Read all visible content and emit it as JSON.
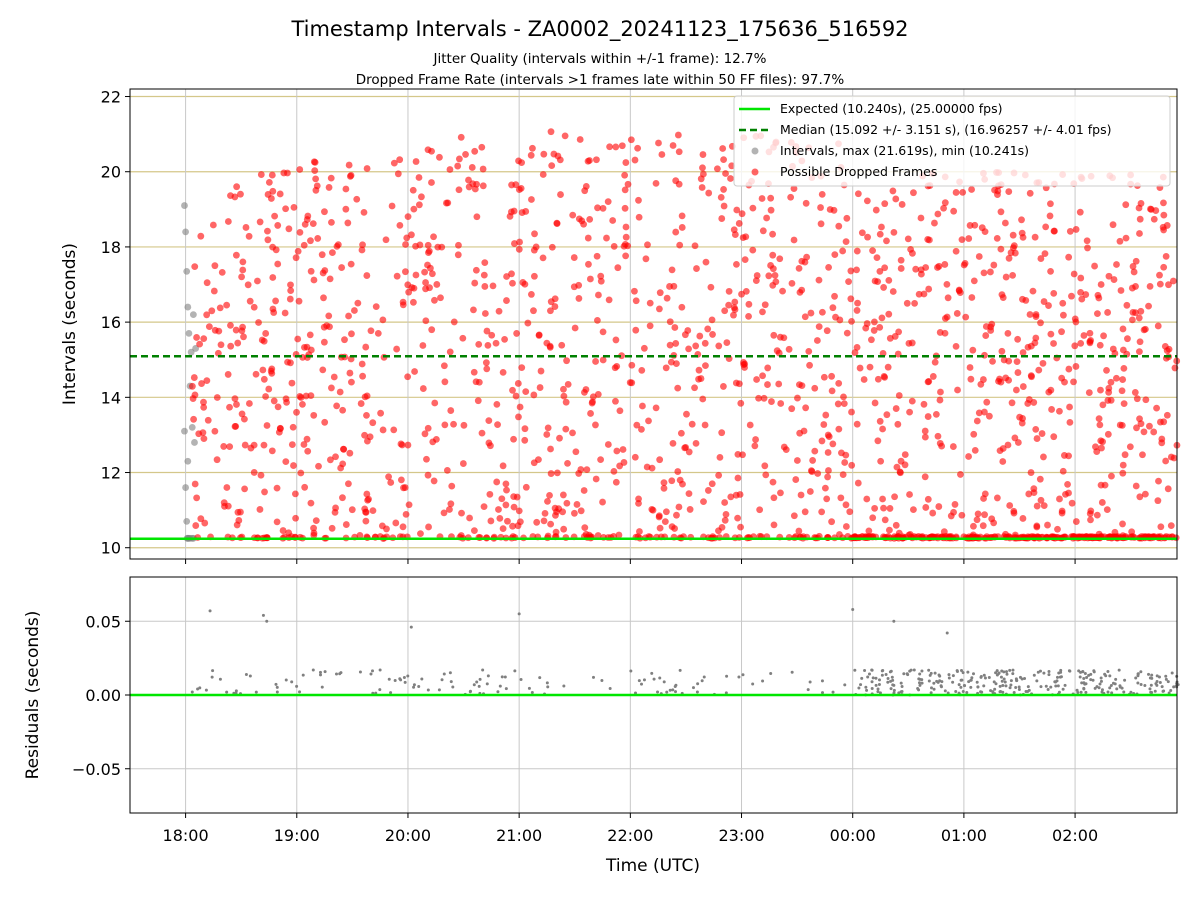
{
  "title": "Timestamp Intervals - ZA0002_20241123_175636_516592",
  "subtitle_1": "Jitter Quality (intervals within +/-1 frame): 12.7%",
  "subtitle_2": "Dropped Frame Rate (intervals >1 frames late within 50 FF files): 97.7%",
  "colors": {
    "expected": "#00e600",
    "median": "#008000",
    "intervals": "#808080",
    "dropped": "#ff0000",
    "hgrid_top": "#d4c78a",
    "grid": "#c8c8c8"
  },
  "chart_data": [
    {
      "type": "scatter",
      "ylabel": "Intervals (seconds)",
      "xlim": [
        "17:30",
        "02:55"
      ],
      "ylim": [
        9.7,
        22.2
      ],
      "yticks": [
        "10",
        "12",
        "14",
        "16",
        "18",
        "20",
        "22"
      ],
      "grid": true,
      "legend": {
        "placement": "top-right",
        "entries": [
          "Expected (10.240s), (25.00000 fps)",
          "Median (15.092 +/- 3.151 s), (16.96257 +/- 4.01 fps)",
          "Intervals, max (21.619s), min (10.241s)",
          "Possible Dropped Frames"
        ]
      },
      "expected_line": 10.24,
      "median_line": 15.092,
      "intervals_max": 21.619,
      "intervals_min": 10.241,
      "series": [
        {
          "name": "Intervals, max (21.619s), min (10.241s)",
          "x_hours": [
            17.99,
            17.99,
            18.0,
            18.0,
            18.01,
            18.01,
            18.02,
            18.02,
            18.03,
            18.04,
            18.05,
            18.06,
            18.07,
            18.08,
            18.09
          ],
          "y": [
            19.1,
            13.1,
            18.4,
            11.6,
            17.35,
            10.7,
            16.4,
            12.3,
            15.7,
            14.3,
            15.2,
            13.2,
            16.2,
            12.8,
            15.3
          ]
        },
        {
          "name": "Possible Dropped Frames",
          "generated": true,
          "count": 1500,
          "x_range_hours": [
            18.05,
            26.93
          ],
          "y_range": [
            10.24,
            21.62
          ],
          "baseline_y": 10.25
        }
      ]
    },
    {
      "type": "scatter",
      "xlabel": "Time (UTC)",
      "ylabel": "Residuals (seconds)",
      "xlim": [
        "17:30",
        "02:55"
      ],
      "ylim": [
        -0.08,
        0.08
      ],
      "yticks": [
        "0.05",
        "0.00",
        "−0.05"
      ],
      "xticks": [
        "18:00",
        "19:00",
        "20:00",
        "21:00",
        "22:00",
        "23:00",
        "00:00",
        "01:00",
        "02:00"
      ],
      "grid": true,
      "zero_line": 0.0,
      "series": [
        {
          "name": "residuals",
          "outliers_x_hours": [
            18.22,
            18.7,
            18.73,
            20.03,
            21.0,
            24.0,
            24.37,
            24.85
          ],
          "outliers_y": [
            0.057,
            0.054,
            0.05,
            0.046,
            0.055,
            0.058,
            0.05,
            0.042
          ],
          "generated": true,
          "count": 420
        }
      ]
    }
  ]
}
